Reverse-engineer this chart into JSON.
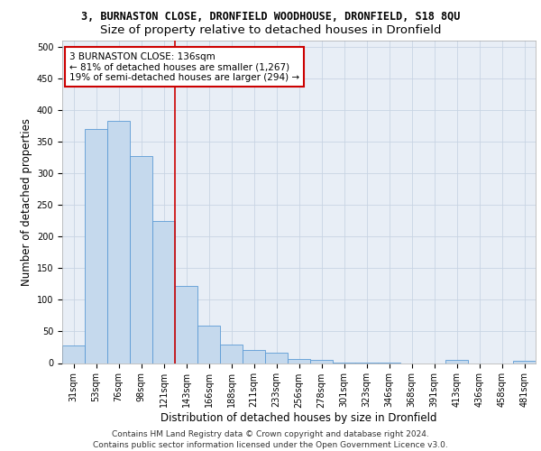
{
  "title_line1": "3, BURNASTON CLOSE, DRONFIELD WOODHOUSE, DRONFIELD, S18 8QU",
  "title_line2": "Size of property relative to detached houses in Dronfield",
  "xlabel": "Distribution of detached houses by size in Dronfield",
  "ylabel": "Number of detached properties",
  "categories": [
    "31sqm",
    "53sqm",
    "76sqm",
    "98sqm",
    "121sqm",
    "143sqm",
    "166sqm",
    "188sqm",
    "211sqm",
    "233sqm",
    "256sqm",
    "278sqm",
    "301sqm",
    "323sqm",
    "346sqm",
    "368sqm",
    "391sqm",
    "413sqm",
    "436sqm",
    "458sqm",
    "481sqm"
  ],
  "values": [
    28,
    370,
    383,
    328,
    225,
    122,
    59,
    29,
    21,
    16,
    6,
    5,
    1,
    1,
    1,
    0,
    0,
    5,
    0,
    0,
    4
  ],
  "bar_color": "#c5d9ed",
  "bar_edge_color": "#5b9bd5",
  "vline_x": 4.5,
  "annotation_text": "3 BURNASTON CLOSE: 136sqm\n← 81% of detached houses are smaller (1,267)\n19% of semi-detached houses are larger (294) →",
  "annotation_box_color": "#ffffff",
  "annotation_box_edge_color": "#cc0000",
  "vline_color": "#cc0000",
  "ylim": [
    0,
    510
  ],
  "yticks": [
    0,
    50,
    100,
    150,
    200,
    250,
    300,
    350,
    400,
    450,
    500
  ],
  "grid_color": "#c8d4e3",
  "background_color": "#e8eef6",
  "footer_text": "Contains HM Land Registry data © Crown copyright and database right 2024.\nContains public sector information licensed under the Open Government Licence v3.0.",
  "title_fontsize": 8.5,
  "subtitle_fontsize": 9.5,
  "xlabel_fontsize": 8.5,
  "ylabel_fontsize": 8.5,
  "tick_fontsize": 7,
  "annotation_fontsize": 7.5,
  "footer_fontsize": 6.5
}
